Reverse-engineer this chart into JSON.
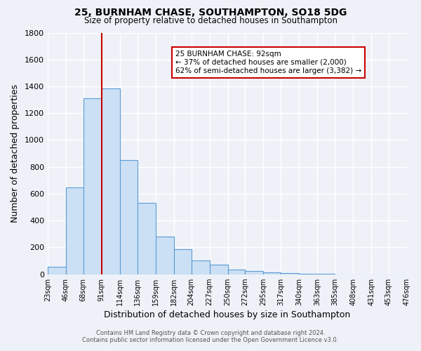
{
  "title1": "25, BURNHAM CHASE, SOUTHAMPTON, SO18 5DG",
  "title2": "Size of property relative to detached houses in Southampton",
  "xlabel": "Distribution of detached houses by size in Southampton",
  "ylabel": "Number of detached properties",
  "bins": [
    23,
    46,
    68,
    91,
    114,
    136,
    159,
    182,
    204,
    227,
    250,
    272,
    295,
    317,
    340,
    363,
    385,
    408,
    431,
    453,
    476
  ],
  "counts": [
    55,
    645,
    1310,
    1385,
    850,
    530,
    280,
    185,
    105,
    70,
    35,
    25,
    15,
    8,
    3,
    2,
    1,
    0,
    0,
    0
  ],
  "bar_fill": "#cce0f5",
  "bar_edge": "#5b9bd5",
  "vline_x": 91,
  "vline_color": "#cc0000",
  "annotation_title": "25 BURNHAM CHASE: 92sqm",
  "annotation_line1": "← 37% of detached houses are smaller (2,000)",
  "annotation_line2": "62% of semi-detached houses are larger (3,382) →",
  "annotation_box_color": "#ffffff",
  "annotation_box_edge": "#cc0000",
  "ylim": [
    0,
    1800
  ],
  "yticks": [
    0,
    200,
    400,
    600,
    800,
    1000,
    1200,
    1400,
    1600,
    1800
  ],
  "tick_labels": [
    "23sqm",
    "46sqm",
    "68sqm",
    "91sqm",
    "114sqm",
    "136sqm",
    "159sqm",
    "182sqm",
    "204sqm",
    "227sqm",
    "250sqm",
    "272sqm",
    "295sqm",
    "317sqm",
    "340sqm",
    "363sqm",
    "385sqm",
    "408sqm",
    "431sqm",
    "453sqm",
    "476sqm"
  ],
  "footer1": "Contains HM Land Registry data © Crown copyright and database right 2024.",
  "footer2": "Contains public sector information licensed under the Open Government Licence v3.0.",
  "bg_color": "#eef2f8",
  "grid_color": "#ffffff"
}
